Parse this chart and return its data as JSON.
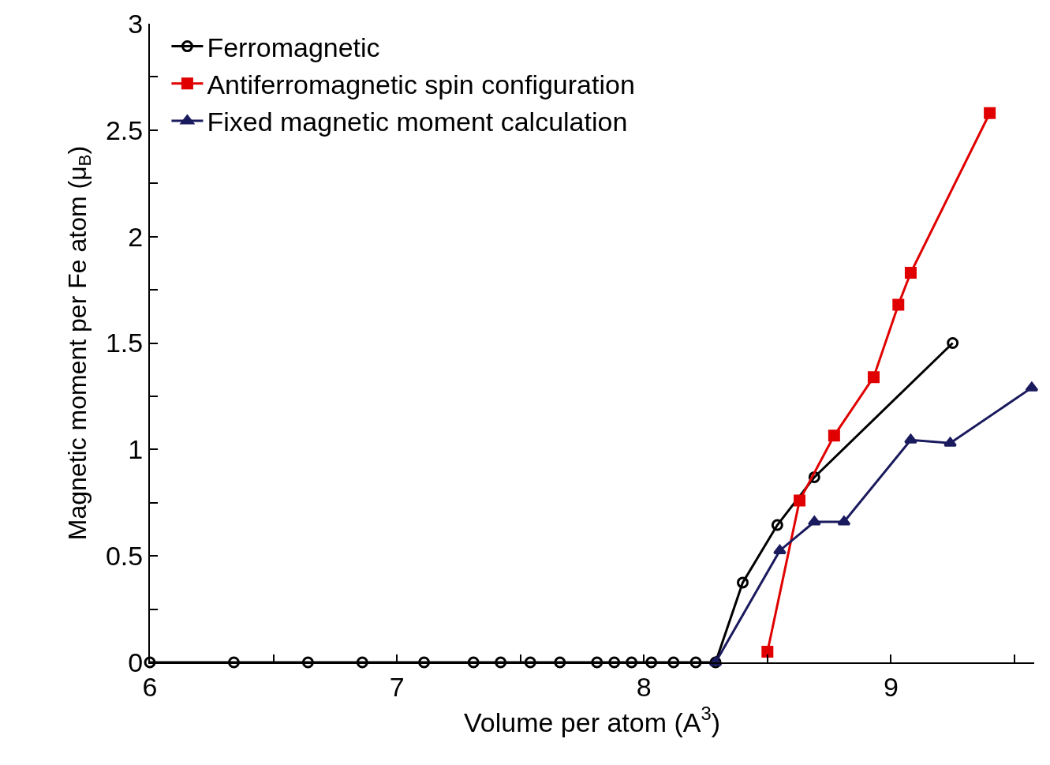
{
  "chart_data": {
    "type": "line",
    "xlabel": "Volume per atom (A$^{3}$)",
    "ylabel": "Magnetic moment per Fe atom (μ$_{B}$)",
    "xlim": [
      6,
      9.58
    ],
    "xticks": [
      6,
      {
        "value": 6.5,
        "label": null
      },
      7,
      {
        "value": 7.5,
        "label": null
      },
      8,
      {
        "value": 8.5,
        "label": null
      },
      9,
      {
        "value": 9.5,
        "label": null
      }
    ],
    "ylim": [
      0,
      3
    ],
    "yticks": [
      0,
      {
        "value": 0.25,
        "label": null
      },
      0.5,
      {
        "value": 0.75,
        "label": null
      },
      1,
      {
        "value": 1.25,
        "label": null
      },
      1.5,
      {
        "value": 1.75,
        "label": null
      },
      2,
      {
        "value": 2.25,
        "label": null
      },
      2.5,
      {
        "value": 2.75,
        "label": null
      },
      3
    ],
    "legend": "top left",
    "series": [
      {
        "name": "Ferromagnetic",
        "color": "#000000",
        "marker": "circle",
        "x": [
          6.0,
          6.34,
          6.64,
          6.86,
          7.11,
          7.31,
          7.42,
          7.54,
          7.66,
          7.81,
          7.88,
          7.95,
          8.03,
          8.12,
          8.21,
          8.29,
          8.4,
          8.54,
          8.69,
          9.25
        ],
        "values": [
          0,
          0,
          0,
          0,
          0,
          0,
          0,
          0,
          0,
          0,
          0,
          0,
          0,
          0,
          0,
          0,
          0.375,
          0.645,
          0.87,
          1.5
        ]
      },
      {
        "name": "Antiferromagnetic spin configuration",
        "color": "#e00000",
        "marker": "square",
        "x": [
          8.5,
          8.63,
          8.77,
          8.93,
          9.03,
          9.08,
          9.4
        ],
        "values": [
          0.05,
          0.76,
          1.065,
          1.34,
          1.68,
          1.83,
          2.58
        ]
      },
      {
        "name": "Fixed magnetic moment calculation",
        "color": "#1a1a5e",
        "marker": "triangle",
        "x": [
          8.29,
          8.55,
          8.69,
          8.81,
          9.08,
          9.24,
          9.57
        ],
        "values": [
          0,
          0.525,
          0.66,
          0.66,
          1.045,
          1.03,
          1.29
        ]
      }
    ]
  }
}
